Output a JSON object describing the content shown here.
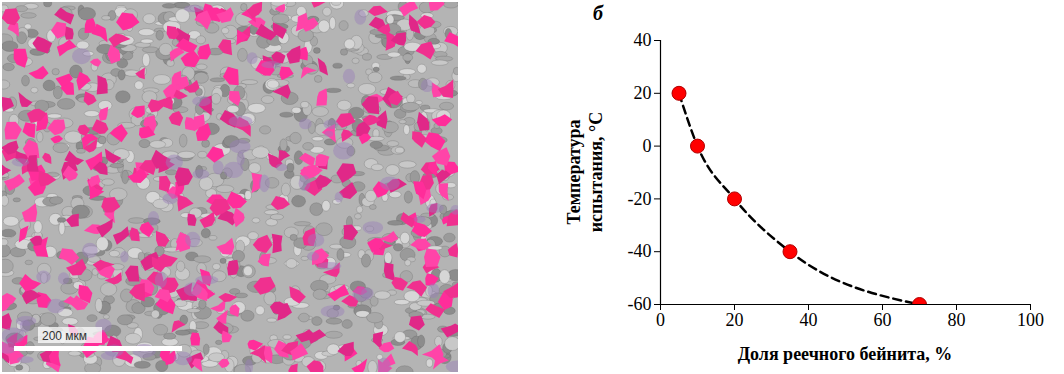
{
  "micrograph": {
    "scale_bar_label": "200 мкм"
  },
  "chart_data": {
    "type": "scatter",
    "annotations": [
      "б"
    ],
    "x_label": "Доля реечного бейнита, %",
    "y_label": "Температура испытания, °C",
    "x": [
      5,
      10,
      20,
      35,
      70
    ],
    "series": [
      {
        "type": "line",
        "line_style": "dashed",
        "color": "#000000",
        "values": [
          20,
          0,
          -20,
          -40,
          -60
        ]
      },
      {
        "type": "scatter",
        "marker": "circle",
        "color": "#ff0000",
        "values": [
          20,
          0,
          -20,
          -40,
          -60
        ]
      }
    ],
    "xlim": [
      0,
      100
    ],
    "xticks": [
      0,
      20,
      40,
      60,
      80,
      100
    ],
    "ylim": [
      -60,
      40
    ],
    "yticks": [
      -60,
      -40,
      -20,
      0,
      20,
      40
    ],
    "grid": false
  }
}
